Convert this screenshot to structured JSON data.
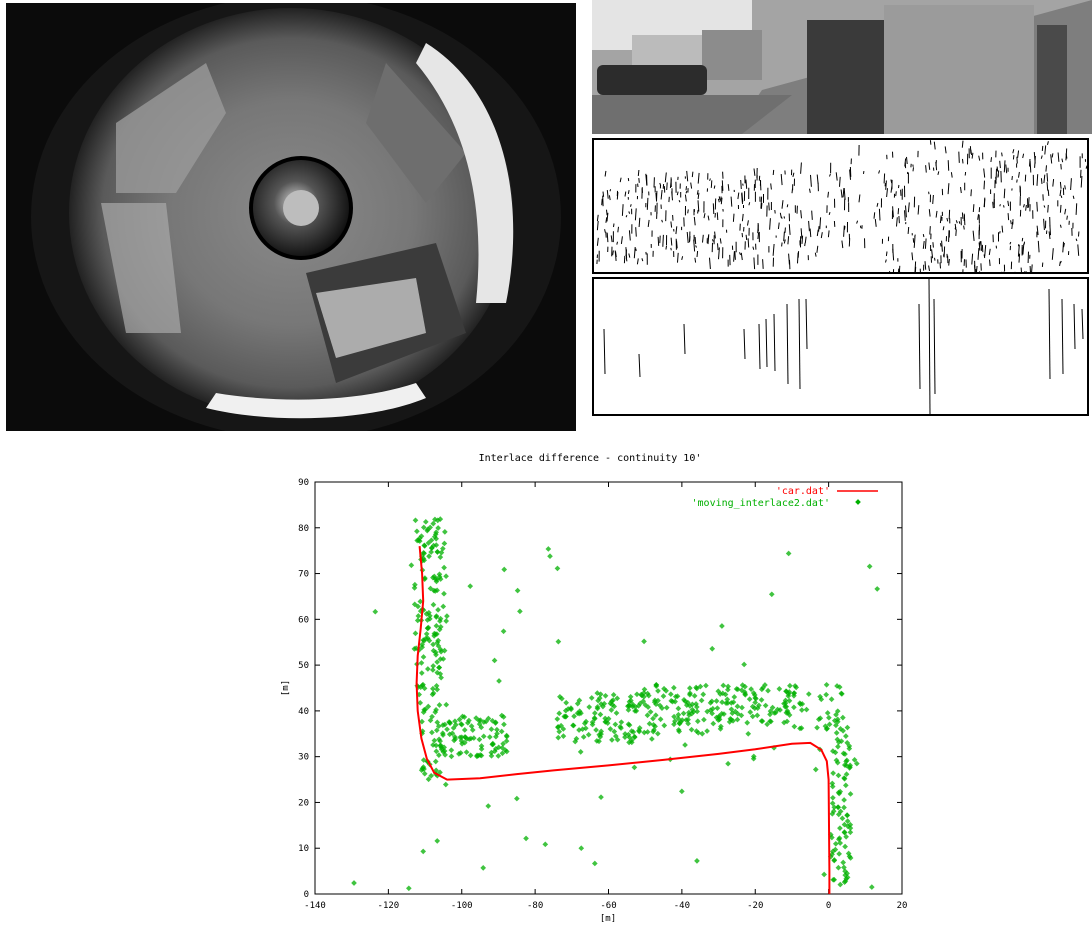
{
  "images": {
    "fisheye": "omnidirectional fisheye camera view of a courtyard with garages and a robot",
    "panorama": "unwrapped grayscale panorama of garage doors and buildings",
    "edges": "edge-detected panorama",
    "vertical_lines": "extracted vertical line segments"
  },
  "colors": {
    "car": "#ff0000",
    "moving": "#00b000",
    "axis": "#000000"
  },
  "chart_data": {
    "type": "scatter",
    "title": "Interlace difference - continuity 10'",
    "xlabel": "[m]",
    "ylabel": "[m]",
    "xlim": [
      -140,
      20
    ],
    "ylim": [
      0,
      90
    ],
    "xticks": [
      -140,
      -120,
      -100,
      -80,
      -60,
      -40,
      -20,
      0,
      20
    ],
    "yticks": [
      0,
      10,
      20,
      30,
      40,
      50,
      60,
      70,
      80,
      90
    ],
    "legend_position": "top-right",
    "series": [
      {
        "name": "'car.dat'",
        "style": "line",
        "color": "#ff0000",
        "x": [
          -111.5,
          -110.8,
          -110.5,
          -111.2,
          -112.0,
          -112.3,
          -112.0,
          -111.0,
          -109.5,
          -107.5,
          -104.0,
          -95.0,
          -85.0,
          -75.0,
          -60.0,
          -45.0,
          -30.0,
          -20.0,
          -10.0,
          -5.0,
          -2.0,
          -0.5,
          0.0,
          0.1,
          0.2,
          0.2
        ],
        "y": [
          76.0,
          70.0,
          64.0,
          58.0,
          52.0,
          46.0,
          40.0,
          34.0,
          29.5,
          26.5,
          25.0,
          25.3,
          26.2,
          27.0,
          28.1,
          29.3,
          30.6,
          31.6,
          32.8,
          33.0,
          31.5,
          29.0,
          25.0,
          15.0,
          5.0,
          0.0
        ]
      },
      {
        "name": "'moving_interlace2.dat'",
        "style": "points",
        "color": "#00b000",
        "clusters": [
          {
            "xmin": -113,
            "xmax": -104,
            "ymin": 40,
            "ymax": 82,
            "n": 150
          },
          {
            "xmin": -111,
            "xmax": -105,
            "ymin": 25,
            "ymax": 40,
            "n": 40
          },
          {
            "xmin": -106,
            "xmax": -87,
            "ymin": 30,
            "ymax": 39,
            "n": 90
          },
          {
            "xmin": -74,
            "xmax": -52,
            "ymin": 33,
            "ymax": 44,
            "n": 110
          },
          {
            "xmin": -52,
            "xmax": -28,
            "ymin": 35,
            "ymax": 46,
            "n": 120
          },
          {
            "xmin": -28,
            "xmax": -10,
            "ymin": 37,
            "ymax": 46,
            "n": 80
          },
          {
            "xmin": -10,
            "xmax": 5,
            "ymin": 36,
            "ymax": 46,
            "n": 40
          },
          {
            "xmin": 0.5,
            "xmax": 6,
            "ymin": 2,
            "ymax": 37,
            "n": 90
          },
          {
            "xmin": -130,
            "xmax": 14,
            "ymin": 1,
            "ymax": 82,
            "n": 60
          }
        ]
      }
    ]
  }
}
